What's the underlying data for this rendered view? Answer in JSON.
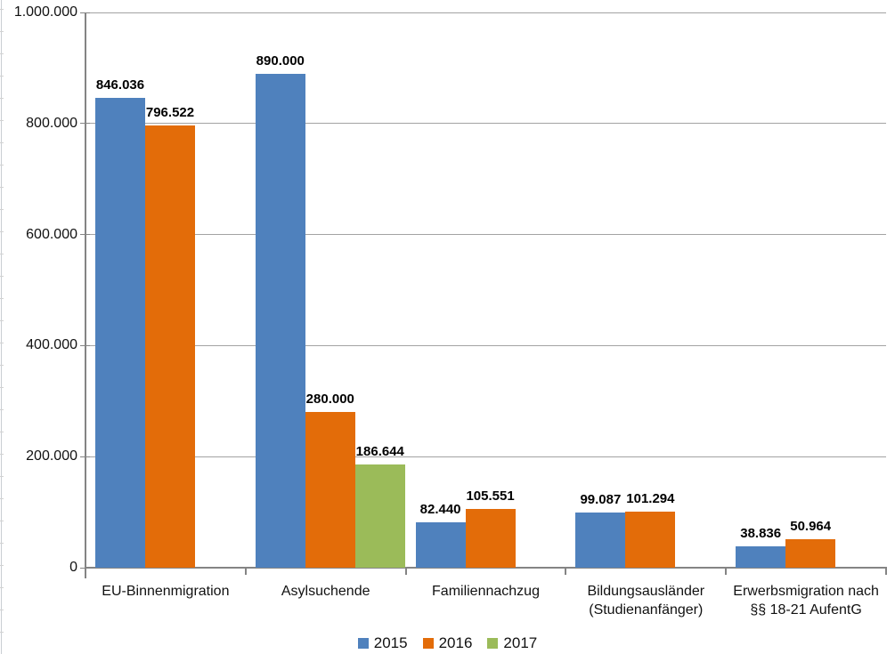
{
  "chart_data": {
    "type": "bar",
    "title": "",
    "categories": [
      [
        "EU-Binnenmigration"
      ],
      [
        "Asylsuchende"
      ],
      [
        "Familiennachzug"
      ],
      [
        "Bildungsausländer",
        "(Studienanfänger)"
      ],
      [
        "Erwerbsmigration nach",
        "§§ 18-21 AufentG"
      ]
    ],
    "series": [
      {
        "name": "2015",
        "color": "#4F81BD",
        "values": [
          846036,
          890000,
          82440,
          99087,
          38836
        ],
        "labels": [
          "846.036",
          "890.000",
          "82.440",
          "99.087",
          "38.836"
        ]
      },
      {
        "name": "2016",
        "color": "#E36C09",
        "values": [
          796522,
          280000,
          105551,
          101294,
          50964
        ],
        "labels": [
          "796.522",
          "280.000",
          "105.551",
          "101.294",
          "50.964"
        ]
      },
      {
        "name": "2017",
        "color": "#9BBB59",
        "values": [
          null,
          186644,
          null,
          null,
          null
        ],
        "labels": [
          null,
          "186.644",
          null,
          null,
          null
        ]
      }
    ],
    "y_axis": {
      "min": 0,
      "max": 1000000,
      "step": 200000,
      "tick_labels": [
        "0",
        "200.000",
        "400.000",
        "600.000",
        "800.000",
        "1.000.000"
      ]
    },
    "legend": {
      "position": "bottom",
      "entries": [
        "2015",
        "2016",
        "2017"
      ]
    },
    "grid": "horizontal-major",
    "xlabel": "",
    "ylabel": ""
  }
}
